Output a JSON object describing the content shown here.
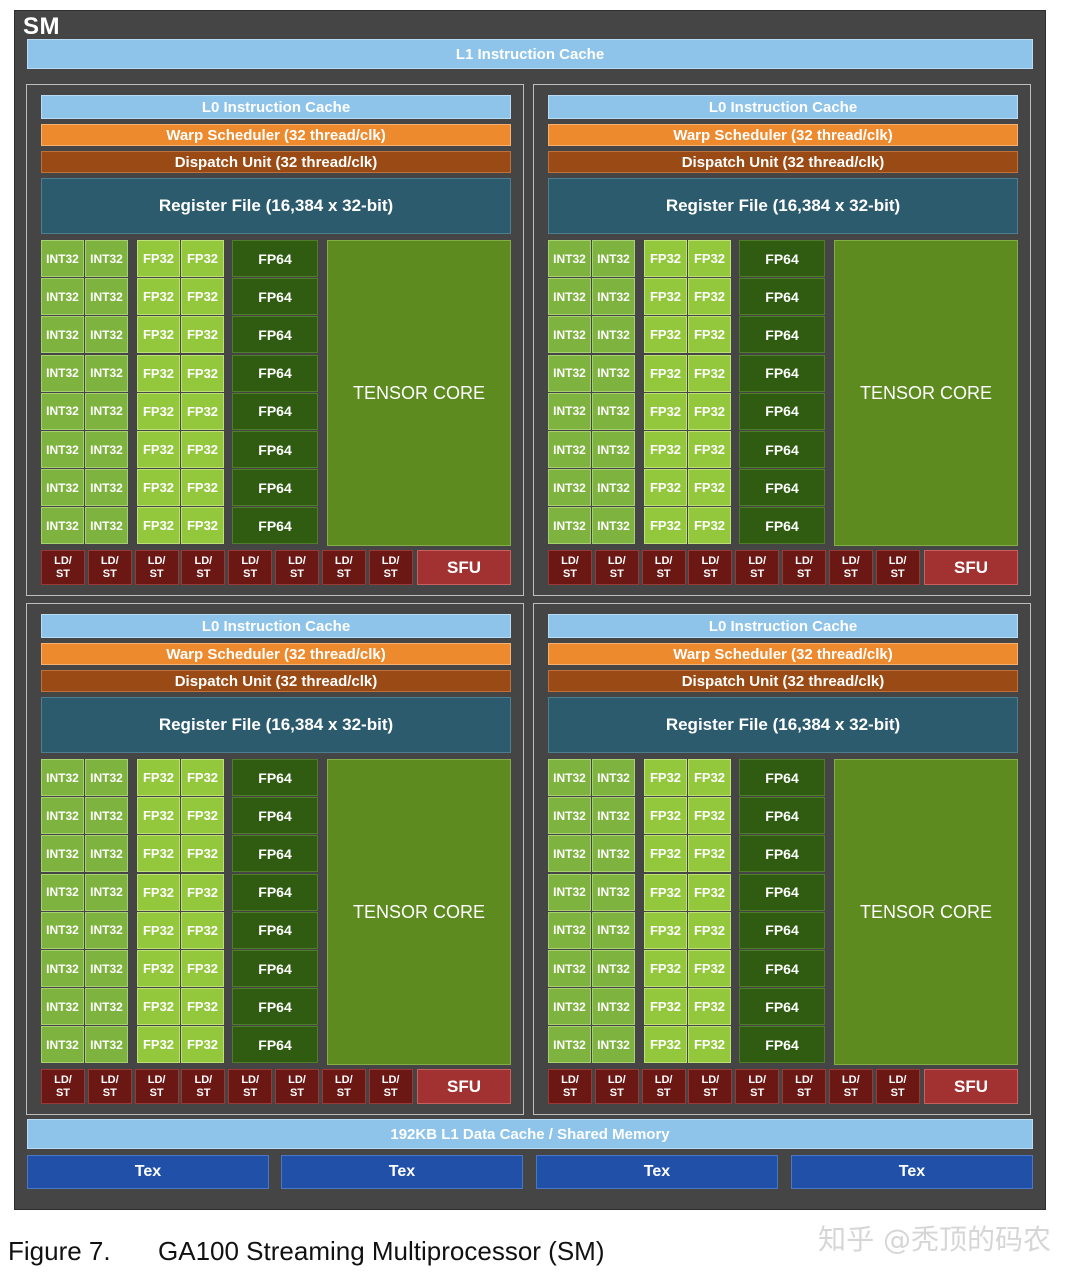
{
  "sm_label": "SM",
  "l1_instruction_cache": "L1 Instruction Cache",
  "partition": {
    "l0_cache": "L0 Instruction Cache",
    "warp_scheduler": "Warp Scheduler (32 thread/clk)",
    "dispatch_unit": "Dispatch Unit (32 thread/clk)",
    "register_file": "Register File (16,384 x 32-bit)",
    "int32": "INT32",
    "fp32": "FP32",
    "fp64": "FP64",
    "tensor_core": "TENSOR CORE",
    "ld": "LD/",
    "st": "ST",
    "sfu": "SFU"
  },
  "l1_data_cache": "192KB L1 Data Cache / Shared Memory",
  "tex_units": [
    "Tex",
    "Tex",
    "Tex",
    "Tex"
  ],
  "caption": {
    "figure_number": "Figure 7.",
    "figure_title": "GA100 Streaming Multiprocessor (SM)"
  },
  "watermark": "知乎 @秃顶的码农",
  "colors": {
    "sm_background": "#454545",
    "cache_blue": "#8ec3ea",
    "warp_orange": "#ee8a2e",
    "dispatch_brown": "#9a4a14",
    "register_teal": "#2d5b6e",
    "int32_green": "#7fb33f",
    "fp32_green": "#94c83c",
    "fp64_green": "#2f5c10",
    "tensor_green": "#5d8b20",
    "ldst_red": "#6b1714",
    "sfu_red": "#a23232",
    "tex_blue": "#2150a8"
  }
}
